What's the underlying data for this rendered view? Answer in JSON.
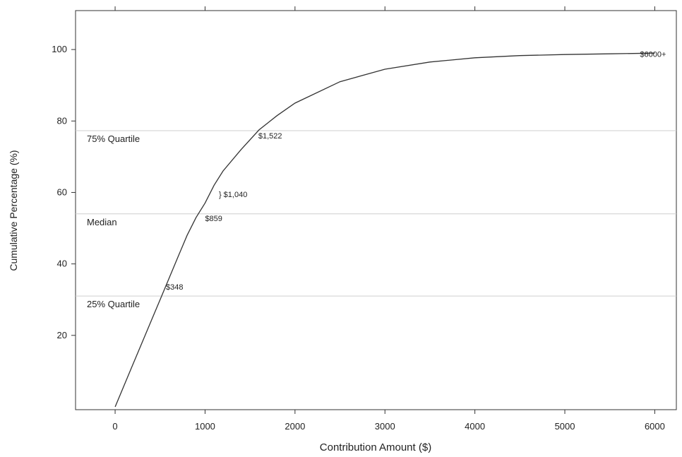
{
  "chart_data": {
    "type": "line",
    "xlabel": "Contribution Amount ($)",
    "ylabel": "Cumulative Percentage (%)",
    "x": [
      0,
      100,
      200,
      300,
      400,
      500,
      600,
      700,
      800,
      900,
      1000,
      1100,
      1200,
      1400,
      1600,
      1800,
      2000,
      2500,
      3000,
      3500,
      4000,
      4500,
      5000,
      5500,
      6000
    ],
    "y": [
      0,
      6,
      12,
      18,
      24,
      30,
      36,
      42,
      48,
      53,
      57,
      62,
      66,
      72,
      77.5,
      81.5,
      85,
      91,
      94.5,
      96.5,
      97.7,
      98.3,
      98.6,
      98.8,
      99
    ],
    "color": "#333333",
    "xlim": [
      -440,
      6240
    ],
    "ylim": [
      -0.8,
      110.9
    ],
    "xticks": [
      0,
      1000,
      2000,
      3000,
      4000,
      5000,
      6000
    ],
    "yticks": [
      20,
      40,
      60,
      80,
      100
    ],
    "hlines": [
      {
        "value": 77.3,
        "label": "75% Quartile"
      },
      {
        "value": 54,
        "label": "Median"
      },
      {
        "value": 31,
        "label": "25% Quartile"
      }
    ],
    "annotations": [
      {
        "text": "$6000+",
        "x": 5835,
        "y": 98
      },
      {
        "text": "$1,522",
        "x": 1592,
        "y": 75.1
      },
      {
        "text": "} $1,040",
        "x": 1153,
        "y": 58.7
      },
      {
        "text": "$859",
        "x": 1000,
        "y": 52
      },
      {
        "text": "$348",
        "x": 565,
        "y": 32.8
      }
    ]
  }
}
